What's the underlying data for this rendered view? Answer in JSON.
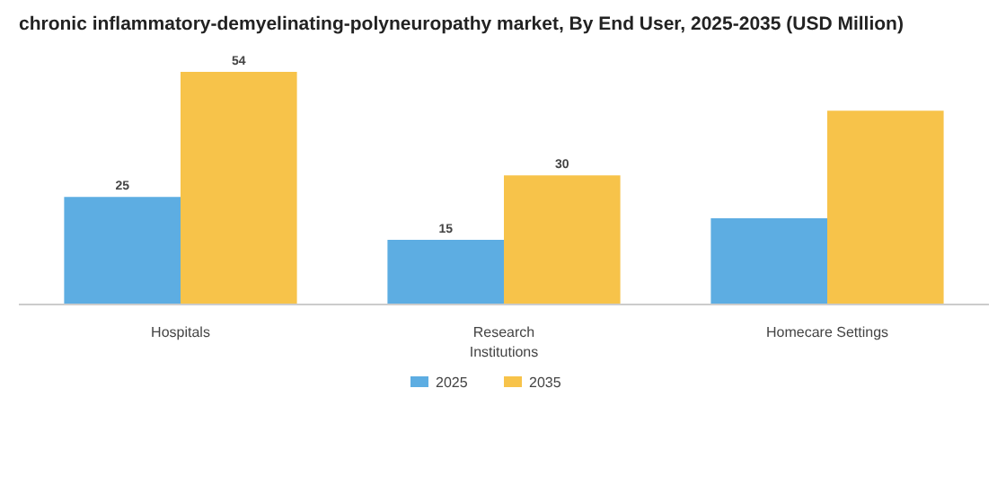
{
  "chart_data": {
    "type": "bar",
    "title": "chronic inflammatory-demyelinating-polyneuropathy market, By End User, 2025-2035 (USD Million)",
    "categories": [
      "Hospitals",
      "Research\nInstitutions",
      "Homecare Settings"
    ],
    "series": [
      {
        "name": "2025",
        "color": "#5dade2",
        "values": [
          25,
          15,
          20
        ],
        "value_labels": [
          "25",
          "15",
          null
        ]
      },
      {
        "name": "2035",
        "color": "#f7c34a",
        "values": [
          54,
          30,
          45
        ],
        "value_labels": [
          "54",
          "30",
          null
        ]
      }
    ],
    "legend": "bottom"
  }
}
